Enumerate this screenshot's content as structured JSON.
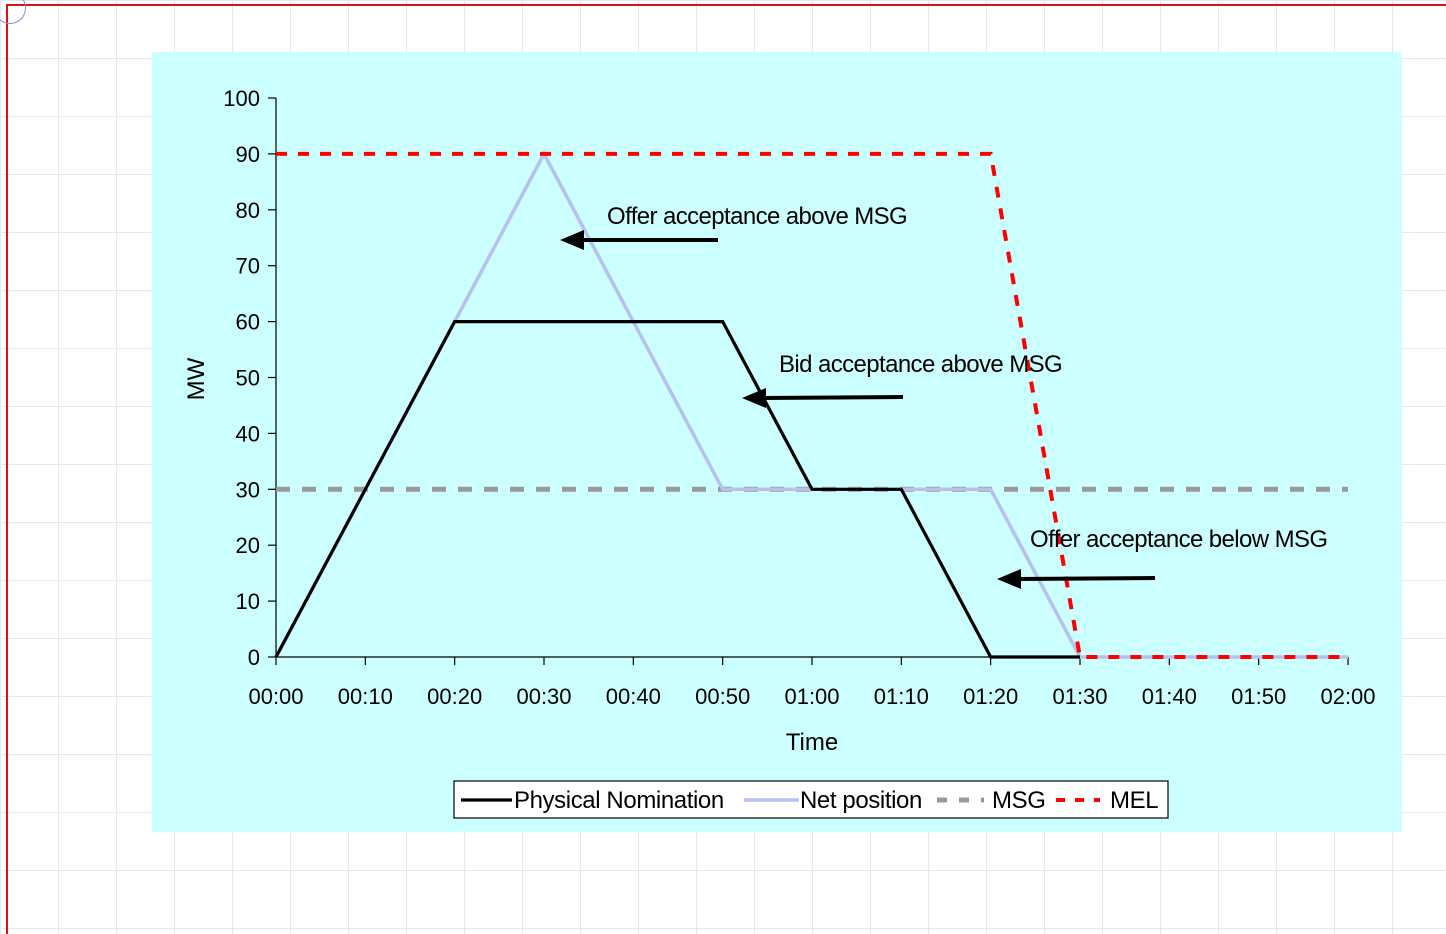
{
  "chart_data": {
    "type": "line",
    "xlabel": "Time",
    "ylabel": "MW",
    "ylim": [
      0,
      100
    ],
    "yticks": [
      0,
      10,
      20,
      30,
      40,
      50,
      60,
      70,
      80,
      90,
      100
    ],
    "xticks": [
      "00:00",
      "00:10",
      "00:20",
      "00:30",
      "00:40",
      "00:50",
      "01:00",
      "01:10",
      "01:20",
      "01:30",
      "01:40",
      "01:50",
      "02:00"
    ],
    "xlim_minutes": [
      0,
      120
    ],
    "grid": false,
    "legend_position": "bottom",
    "series": [
      {
        "name": "Physical Nomination",
        "color": "#000000",
        "style": "solid",
        "points": [
          [
            "00:00",
            0
          ],
          [
            "00:20",
            60
          ],
          [
            "00:50",
            60
          ],
          [
            "01:00",
            30
          ],
          [
            "01:10",
            30
          ],
          [
            "01:20",
            0
          ],
          [
            "01:30",
            0
          ]
        ]
      },
      {
        "name": "Net position",
        "color": "#b8c0ee",
        "style": "solid",
        "points": [
          [
            "00:00",
            0
          ],
          [
            "00:30",
            90
          ],
          [
            "00:50",
            30
          ],
          [
            "01:20",
            30
          ],
          [
            "01:30",
            0
          ],
          [
            "02:00",
            0
          ]
        ]
      },
      {
        "name": "MSG",
        "color": "#999999",
        "style": "dashed",
        "points": [
          [
            "00:00",
            30
          ],
          [
            "02:00",
            30
          ]
        ]
      },
      {
        "name": "MEL",
        "color": "#ff0000",
        "style": "dashed",
        "points": [
          [
            "00:00",
            90
          ],
          [
            "01:20",
            90
          ],
          [
            "01:30",
            0
          ],
          [
            "02:00",
            0
          ]
        ]
      }
    ],
    "annotations": [
      {
        "text": "Offer acceptance above MSG",
        "arrow_to": [
          "00:32",
          75
        ]
      },
      {
        "text": "Bid acceptance above MSG",
        "arrow_to": [
          "00:52",
          46
        ]
      },
      {
        "text": "Offer acceptance below MSG",
        "arrow_to": [
          "01:21",
          14
        ]
      }
    ]
  }
}
